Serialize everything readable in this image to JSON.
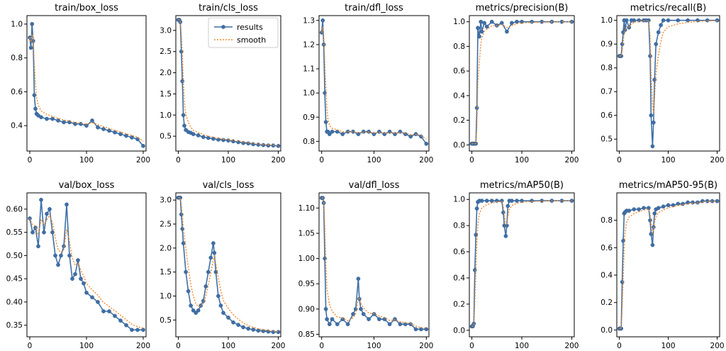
{
  "legend": {
    "results_label": "results",
    "smooth_label": "smooth"
  },
  "chart_data": [
    {
      "type": "line",
      "title": "train/box_loss",
      "xlim": [
        -5,
        205
      ],
      "ylim": [
        0.25,
        1.05
      ],
      "xticks": [
        0,
        100,
        200
      ],
      "yticks": [
        0.4,
        0.6,
        0.8,
        1.0
      ],
      "ytick_labels": [
        "0.4",
        "0.6",
        "0.8",
        "1.0"
      ],
      "series": [
        {
          "name": "results",
          "x": [
            0,
            2,
            4,
            6,
            8,
            10,
            12,
            15,
            20,
            30,
            40,
            50,
            60,
            70,
            80,
            90,
            100,
            110,
            120,
            130,
            140,
            150,
            160,
            170,
            180,
            190,
            200
          ],
          "y": [
            0.92,
            0.86,
            1.0,
            0.9,
            0.58,
            0.5,
            0.47,
            0.46,
            0.45,
            0.44,
            0.44,
            0.43,
            0.42,
            0.42,
            0.41,
            0.41,
            0.4,
            0.43,
            0.39,
            0.38,
            0.37,
            0.36,
            0.35,
            0.34,
            0.33,
            0.32,
            0.28
          ]
        }
      ]
    },
    {
      "type": "line",
      "title": "train/cls_loss",
      "xlim": [
        -5,
        205
      ],
      "ylim": [
        0.15,
        3.35
      ],
      "xticks": [
        0,
        100,
        200
      ],
      "yticks": [
        0.5,
        1.0,
        1.5,
        2.0,
        2.5,
        3.0
      ],
      "ytick_labels": [
        "0.5",
        "1.0",
        "1.5",
        "2.0",
        "2.5",
        "3.0"
      ],
      "legend": true,
      "series": [
        {
          "name": "results",
          "x": [
            0,
            2,
            4,
            6,
            8,
            10,
            12,
            15,
            20,
            25,
            30,
            40,
            50,
            60,
            70,
            80,
            90,
            100,
            110,
            120,
            130,
            140,
            150,
            160,
            170,
            180,
            190,
            200
          ],
          "y": [
            3.25,
            3.25,
            3.2,
            2.5,
            1.8,
            1.0,
            0.75,
            0.65,
            0.6,
            0.58,
            0.55,
            0.52,
            0.48,
            0.46,
            0.44,
            0.42,
            0.41,
            0.4,
            0.38,
            0.36,
            0.34,
            0.33,
            0.31,
            0.3,
            0.29,
            0.28,
            0.28,
            0.27
          ]
        }
      ]
    },
    {
      "type": "line",
      "title": "train/dfl_loss",
      "xlim": [
        -5,
        205
      ],
      "ylim": [
        0.76,
        1.32
      ],
      "xticks": [
        0,
        100,
        200
      ],
      "yticks": [
        0.8,
        0.9,
        1.0,
        1.1,
        1.2,
        1.3
      ],
      "ytick_labels": [
        "0.8",
        "0.9",
        "1.0",
        "1.1",
        "1.2",
        "1.3"
      ],
      "series": [
        {
          "name": "results",
          "x": [
            0,
            2,
            4,
            6,
            8,
            10,
            12,
            15,
            20,
            30,
            40,
            50,
            60,
            70,
            80,
            90,
            100,
            110,
            120,
            130,
            140,
            150,
            160,
            170,
            180,
            190,
            200
          ],
          "y": [
            1.25,
            1.3,
            1.2,
            1.0,
            0.88,
            0.84,
            0.84,
            0.83,
            0.84,
            0.84,
            0.83,
            0.84,
            0.84,
            0.83,
            0.84,
            0.84,
            0.83,
            0.84,
            0.83,
            0.84,
            0.83,
            0.84,
            0.83,
            0.82,
            0.83,
            0.82,
            0.79
          ]
        }
      ]
    },
    {
      "type": "line",
      "title": "metrics/precision(B)",
      "xlim": [
        -5,
        205
      ],
      "ylim": [
        -0.05,
        1.05
      ],
      "xticks": [
        0,
        100,
        200
      ],
      "yticks": [
        0.0,
        0.2,
        0.4,
        0.6,
        0.8,
        1.0
      ],
      "ytick_labels": [
        "0.0",
        "0.2",
        "0.4",
        "0.6",
        "0.8",
        "1.0"
      ],
      "series": [
        {
          "name": "results",
          "x": [
            0,
            2,
            4,
            6,
            8,
            10,
            12,
            15,
            18,
            20,
            25,
            30,
            40,
            50,
            60,
            70,
            80,
            90,
            100,
            120,
            140,
            160,
            180,
            200
          ],
          "y": [
            0.01,
            0.01,
            0.01,
            0.01,
            0.01,
            0.3,
            0.95,
            0.88,
            1.0,
            0.92,
            0.99,
            0.96,
            1.0,
            0.97,
            0.99,
            0.92,
            0.99,
            1.0,
            1.0,
            1.0,
            1.0,
            1.0,
            1.0,
            1.0
          ]
        }
      ]
    },
    {
      "type": "line",
      "title": "metrics/recall(B)",
      "xlim": [
        -5,
        205
      ],
      "ylim": [
        0.45,
        1.02
      ],
      "xticks": [
        0,
        100,
        200
      ],
      "yticks": [
        0.5,
        0.6,
        0.7,
        0.8,
        0.9,
        1.0
      ],
      "ytick_labels": [
        "0.5",
        "0.6",
        "0.7",
        "0.8",
        "0.9",
        "1.0"
      ],
      "series": [
        {
          "name": "results",
          "x": [
            0,
            2,
            4,
            6,
            8,
            10,
            12,
            15,
            20,
            25,
            30,
            40,
            50,
            55,
            60,
            63,
            65,
            68,
            70,
            72,
            75,
            80,
            85,
            90,
            100,
            120,
            140,
            160,
            180,
            200
          ],
          "y": [
            0.85,
            0.85,
            0.85,
            0.9,
            0.95,
            1.0,
            0.96,
            1.0,
            0.97,
            1.0,
            1.0,
            1.0,
            1.0,
            1.0,
            1.0,
            0.85,
            0.6,
            0.47,
            0.57,
            0.75,
            0.9,
            0.95,
            0.98,
            1.0,
            1.0,
            1.0,
            1.0,
            1.0,
            1.0,
            1.0
          ]
        }
      ]
    },
    {
      "type": "line",
      "title": "val/box_loss",
      "xlim": [
        -5,
        205
      ],
      "ylim": [
        0.325,
        0.635
      ],
      "xticks": [
        0,
        100,
        200
      ],
      "yticks": [
        0.35,
        0.4,
        0.45,
        0.5,
        0.55,
        0.6
      ],
      "ytick_labels": [
        "0.35",
        "0.40",
        "0.45",
        "0.50",
        "0.55",
        "0.60"
      ],
      "series": [
        {
          "name": "results",
          "x": [
            0,
            5,
            10,
            15,
            20,
            25,
            30,
            35,
            40,
            45,
            50,
            55,
            60,
            65,
            70,
            75,
            80,
            85,
            90,
            95,
            100,
            110,
            120,
            130,
            140,
            150,
            160,
            170,
            180,
            190,
            200
          ],
          "y": [
            0.58,
            0.55,
            0.56,
            0.52,
            0.62,
            0.55,
            0.59,
            0.6,
            0.55,
            0.5,
            0.48,
            0.5,
            0.52,
            0.61,
            0.5,
            0.45,
            0.46,
            0.49,
            0.45,
            0.44,
            0.42,
            0.41,
            0.4,
            0.38,
            0.38,
            0.37,
            0.36,
            0.35,
            0.34,
            0.34,
            0.34
          ]
        }
      ]
    },
    {
      "type": "line",
      "title": "val/cls_loss",
      "xlim": [
        -5,
        205
      ],
      "ylim": [
        0.15,
        3.15
      ],
      "xticks": [
        0,
        100,
        200
      ],
      "yticks": [
        0.5,
        1.0,
        1.5,
        2.0,
        2.5,
        3.0
      ],
      "ytick_labels": [
        "0.5",
        "1.0",
        "1.5",
        "2.0",
        "2.5",
        "3.0"
      ],
      "series": [
        {
          "name": "results",
          "x": [
            0,
            4,
            6,
            8,
            10,
            15,
            20,
            25,
            30,
            35,
            40,
            45,
            50,
            55,
            60,
            65,
            70,
            72,
            75,
            80,
            85,
            90,
            100,
            110,
            120,
            130,
            140,
            150,
            160,
            170,
            180,
            190,
            200
          ],
          "y": [
            3.05,
            3.05,
            2.7,
            2.4,
            2.1,
            1.5,
            1.1,
            0.8,
            0.7,
            0.65,
            0.7,
            0.8,
            0.9,
            1.2,
            1.5,
            1.8,
            2.1,
            1.9,
            1.5,
            1.0,
            0.8,
            0.65,
            0.55,
            0.45,
            0.4,
            0.35,
            0.32,
            0.3,
            0.28,
            0.27,
            0.26,
            0.25,
            0.25
          ]
        }
      ]
    },
    {
      "type": "line",
      "title": "val/dfl_loss",
      "xlim": [
        -5,
        205
      ],
      "ylim": [
        0.845,
        1.13
      ],
      "xticks": [
        0,
        100,
        200
      ],
      "yticks": [
        0.85,
        0.9,
        0.95,
        1.0,
        1.05,
        1.1
      ],
      "ytick_labels": [
        "0.85",
        "0.90",
        "0.95",
        "1.00",
        "1.05",
        "1.10"
      ],
      "series": [
        {
          "name": "results",
          "x": [
            0,
            2,
            4,
            6,
            8,
            10,
            15,
            20,
            30,
            40,
            50,
            60,
            65,
            70,
            72,
            75,
            80,
            90,
            100,
            110,
            120,
            130,
            140,
            150,
            160,
            170,
            180,
            190,
            200
          ],
          "y": [
            1.12,
            1.12,
            1.11,
            1.0,
            0.9,
            0.88,
            0.87,
            0.88,
            0.87,
            0.88,
            0.87,
            0.89,
            0.9,
            0.96,
            0.92,
            0.9,
            0.89,
            0.88,
            0.89,
            0.88,
            0.88,
            0.87,
            0.88,
            0.87,
            0.87,
            0.87,
            0.86,
            0.86,
            0.86
          ]
        }
      ]
    },
    {
      "type": "line",
      "title": "metrics/mAP50(B)",
      "xlim": [
        -5,
        205
      ],
      "ylim": [
        -0.05,
        1.05
      ],
      "xticks": [
        0,
        100,
        200
      ],
      "yticks": [
        0.0,
        0.2,
        0.4,
        0.6,
        0.8,
        1.0
      ],
      "ytick_labels": [
        "0.0",
        "0.2",
        "0.4",
        "0.6",
        "0.8",
        "1.0"
      ],
      "series": [
        {
          "name": "results",
          "x": [
            0,
            2,
            4,
            6,
            8,
            10,
            12,
            15,
            20,
            30,
            40,
            50,
            60,
            63,
            65,
            68,
            70,
            72,
            75,
            80,
            90,
            100,
            120,
            140,
            160,
            180,
            200
          ],
          "y": [
            0.03,
            0.03,
            0.05,
            0.46,
            0.73,
            0.93,
            0.98,
            0.99,
            0.99,
            0.99,
            0.99,
            0.99,
            0.99,
            0.9,
            0.8,
            0.72,
            0.8,
            0.95,
            0.99,
            0.99,
            0.99,
            0.99,
            0.99,
            0.99,
            0.99,
            0.99,
            0.99
          ]
        }
      ]
    },
    {
      "type": "line",
      "title": "metrics/mAP50-95(B)",
      "xlim": [
        -5,
        205
      ],
      "ylim": [
        -0.05,
        1.0
      ],
      "xticks": [
        0,
        100,
        200
      ],
      "yticks": [
        0.0,
        0.2,
        0.4,
        0.6,
        0.8
      ],
      "ytick_labels": [
        "0.0",
        "0.2",
        "0.4",
        "0.6",
        "0.8"
      ],
      "series": [
        {
          "name": "results",
          "x": [
            0,
            2,
            4,
            6,
            8,
            10,
            12,
            15,
            20,
            30,
            40,
            50,
            60,
            63,
            65,
            68,
            70,
            72,
            75,
            80,
            90,
            100,
            110,
            120,
            130,
            140,
            150,
            160,
            170,
            180,
            190,
            200
          ],
          "y": [
            0.01,
            0.01,
            0.01,
            0.35,
            0.65,
            0.85,
            0.86,
            0.87,
            0.87,
            0.88,
            0.88,
            0.89,
            0.89,
            0.8,
            0.7,
            0.62,
            0.75,
            0.85,
            0.88,
            0.89,
            0.9,
            0.91,
            0.91,
            0.92,
            0.92,
            0.93,
            0.93,
            0.93,
            0.94,
            0.94,
            0.94,
            0.94
          ]
        }
      ]
    }
  ]
}
